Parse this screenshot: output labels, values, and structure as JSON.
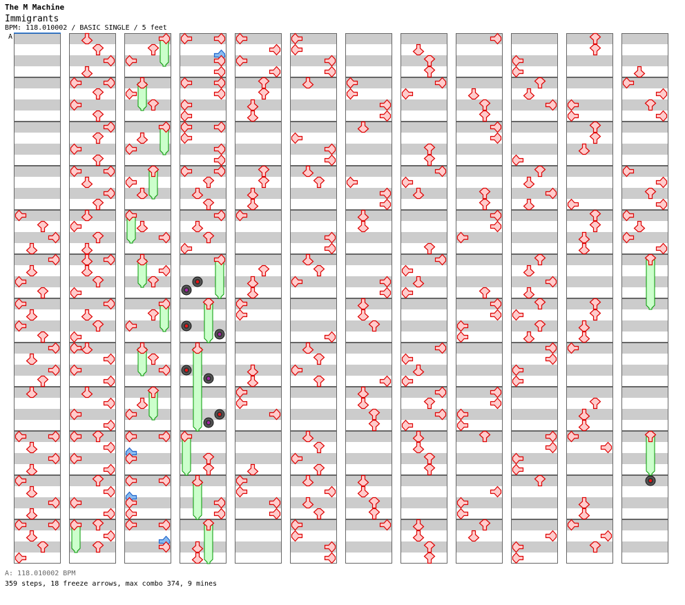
{
  "header": {
    "artist": "The M Machine",
    "title": "Immigrants",
    "info": "BPM: 118.010002 / BASIC SINGLE / 5 feet",
    "bpm_marker_label": "A"
  },
  "footer": {
    "bpm_line": "A: 118.010002 BPM",
    "stats": "359 steps, 18 freeze arrows, max combo 374, 9 mines"
  },
  "colors": {
    "stripe": "#cccccc",
    "arrow_fill": "#ffcccc",
    "arrow_stroke": "#dd0000",
    "eighth_fill": "#88bbf0",
    "eighth_stroke": "#2266cc",
    "freeze_fill": "#ccffcc",
    "freeze_stroke": "#009900",
    "bpm_marker": "#1166cc"
  },
  "chart": {
    "lanes": [
      "L",
      "D",
      "U",
      "R"
    ],
    "beats_per_column": 48,
    "columns": [
      "16L 17U 18R 19D 20R 21D 22L 23U 24L 25D 26L 27U 28R 29D 30R 31U 32D 36L 36R 37D 38R 39D 40L 41D 42R 43D 44L 44R 45D 46U 47L",
      "0D 1U 2R 3D 4L 4R 5U 6L 7U 8R 9U 10L 11U 12L 12R 13D 14R 15U 16D 17L 18U 19D 20D 20R 21D 22U 23L 24R 25D 26U 27L 28L 28D 29R 30L 31R 32D 33R 34L 35R 36L 36U 37R 38L 39R 40U 41R 42L 43R 44L:2 44U 45R 46U",
      "0R:2 1U 2L 4D:2 5L 6U 8R:2 9D 10L 12U:2 13L 14D 16L:2 17D 18R 20D:2 21R 22U 24R:2 25U 26L 28D:2 29U 30R 32U:2 33D 34L 36L 36R 37.5L 38L 40L 40R 41.5L 42L 43L 44L 44R 45.5R 46R",
      "0L 0R 1.5R 2R 3R 4L 4R 5R 6L 7L 8L 8R 9L 10R 11R 12L 12R 13U 14D 15U 16R 17D 18U 19L 20R:3 22D! 22.75L! 24U:3 26L! 26.75R! 28D:7 30L! 30.75U! 34R! 34.75U! 36L:3 38U 39U 40D:3 42R 43R 44U:3 46D 47D",
      "0L 1R 2L 3R 4U 5U 6D 7D 12U 13U 14D 15D 16L 21U 22D 23D 24L 25L 30D 31D 32L 33L 34R 39D 40L 41L 42R 43R",
      "0L 1L 2R 3R 4D 9L 10R 11R 12D 13U 18R 19R 20D 21U 22L 27R 28D 29U 30L 31U 36D 37U 38L 39U 40D 41R 42D 43U 44L 45L 46R 47R",
      "4L 5L 6R 7R 8D 13L 14R 15R 16D 17D 22R 23R 24D 25D 26U 31R 32D 33D 34U 35U 40D 41D 42U 43U 44R",
      "1D 2U 3U 4R 5L 10U 11U 12R 13L 14D 19U 20R 21L 22D 23L 28R 29L 30D 31L 32R 33U 34R 35L 36D 37D 38U 39U 44D 45D 46U 47U",
      "0R 5D 6U 7U 8R 9R 14U 15U 16R 17R 18L 23U 24R 25R 26L 27L 32R 33R 34L 35L 36U 41R 42L 43L 44U 45D",
      "2L 3L 4U 5D 6R 11L 12U 13D 14R 15D 20U 21D 22R 23D 24U 25L 26U 27D 28R 29R 30L 31L 36R 37R 38L 39L 40U 45R 46L 47L",
      "0U 1U 6L 7L 8U 9U 10D 15L 16U 17U 18D 19D 24U 25U 26D 27D 28L 33U 34D 35D 36L 37R 42D 43D 44L 45R 46U",
      "3D 4L 5R 6U 7R 12L 13R 14U 15R 16L 17D 18L 19R 20U:4 36U:3 40U!"
    ]
  }
}
